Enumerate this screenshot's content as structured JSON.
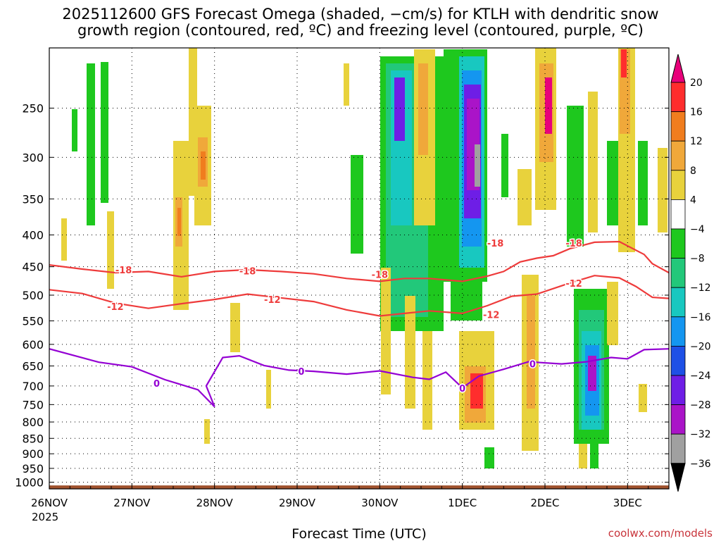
{
  "header": {
    "title_line1": "2025112600 GFS Forecast Omega (shaded, −cm/s) for KTLH with dendritic snow",
    "title_line2": "growth region (contoured, red, ºC) and freezing level (contoured, purple, ºC)"
  },
  "footer": {
    "credit": "coolwx.com/models"
  },
  "colors": {
    "dsg": "#ee3b3b",
    "frz": "#9400d3",
    "ground": "#a0522d"
  },
  "chart_data": {
    "type": "heatmap",
    "title": "2025112600 GFS Forecast Omega (shaded, −cm/s) for KTLH with dendritic snow growth region (contoured, red, ºC) and freezing level (contoured, purple, ºC)",
    "xlabel": "Forecast Time (UTC)",
    "ylabel": "",
    "year_label": "2025",
    "x_ticks": [
      "26NOV",
      "27NOV",
      "28NOV",
      "29NOV",
      "30NOV",
      "1DEC",
      "2DEC",
      "3DEC"
    ],
    "x_range_days": [
      0,
      7.5
    ],
    "y_ticks": [
      250,
      300,
      350,
      400,
      450,
      500,
      550,
      600,
      650,
      700,
      750,
      800,
      850,
      900,
      950,
      1000
    ],
    "y_range": [
      1025,
      200
    ],
    "colorbar": {
      "labels": [
        "20",
        "16",
        "12",
        "8",
        "4",
        "−4",
        "−8",
        "−12",
        "−16",
        "−20",
        "−24",
        "−28",
        "−32",
        "−36"
      ],
      "colors": [
        "#ff2d2d",
        "#f07d1e",
        "#f0a83a",
        "#e8d23c",
        "#ffffff",
        "#1ec81e",
        "#22c87a",
        "#18c8c0",
        "#1496f0",
        "#1e50e6",
        "#6e1ee6",
        "#aa14c8",
        "#a0a0a0"
      ],
      "over_color": "#e8007a",
      "under_color": "#000000"
    },
    "series": [
      {
        "name": "-18",
        "color": "#ee3b3b",
        "label_positions": [
          [
            0.9,
            455
          ],
          [
            2.4,
            457
          ],
          [
            4.0,
            463
          ],
          [
            5.4,
            412
          ],
          [
            6.35,
            412
          ]
        ],
        "points": [
          [
            0,
            447
          ],
          [
            0.4,
            454
          ],
          [
            0.8,
            460
          ],
          [
            1.2,
            458
          ],
          [
            1.6,
            467
          ],
          [
            2.0,
            458
          ],
          [
            2.4,
            455
          ],
          [
            2.8,
            458
          ],
          [
            3.2,
            462
          ],
          [
            3.6,
            470
          ],
          [
            4.0,
            475
          ],
          [
            4.3,
            470
          ],
          [
            4.6,
            470
          ],
          [
            5.0,
            475
          ],
          [
            5.3,
            466
          ],
          [
            5.5,
            458
          ],
          [
            5.7,
            442
          ],
          [
            5.9,
            436
          ],
          [
            6.1,
            432
          ],
          [
            6.3,
            421
          ],
          [
            6.6,
            411
          ],
          [
            6.9,
            410
          ],
          [
            7.2,
            430
          ],
          [
            7.3,
            445
          ],
          [
            7.5,
            460
          ]
        ]
      },
      {
        "name": "-12",
        "color": "#ee3b3b",
        "label_positions": [
          [
            0.8,
            521
          ],
          [
            2.7,
            508
          ],
          [
            5.35,
            537
          ],
          [
            6.35,
            478
          ]
        ],
        "points": [
          [
            0,
            490
          ],
          [
            0.4,
            497
          ],
          [
            0.8,
            515
          ],
          [
            1.2,
            525
          ],
          [
            1.6,
            516
          ],
          [
            2.0,
            508
          ],
          [
            2.4,
            498
          ],
          [
            2.8,
            505
          ],
          [
            3.2,
            512
          ],
          [
            3.6,
            528
          ],
          [
            4.0,
            540
          ],
          [
            4.3,
            535
          ],
          [
            4.6,
            530
          ],
          [
            5.0,
            535
          ],
          [
            5.3,
            520
          ],
          [
            5.6,
            502
          ],
          [
            5.9,
            498
          ],
          [
            6.3,
            478
          ],
          [
            6.6,
            465
          ],
          [
            6.9,
            469
          ],
          [
            7.1,
            484
          ],
          [
            7.3,
            504
          ],
          [
            7.5,
            506
          ]
        ]
      },
      {
        "name": "0",
        "color": "#9400d3",
        "label_positions": [
          [
            1.3,
            693
          ],
          [
            3.05,
            663
          ],
          [
            5.0,
            706
          ],
          [
            5.85,
            645
          ]
        ],
        "points": [
          [
            0,
            610
          ],
          [
            0.6,
            641
          ],
          [
            1.0,
            652
          ],
          [
            1.4,
            684
          ],
          [
            1.8,
            710
          ],
          [
            2.0,
            756
          ],
          [
            1.9,
            700
          ],
          [
            2.1,
            630
          ],
          [
            2.3,
            626
          ],
          [
            2.6,
            649
          ],
          [
            2.9,
            660
          ],
          [
            3.2,
            663
          ],
          [
            3.6,
            670
          ],
          [
            4.0,
            662
          ],
          [
            4.4,
            678
          ],
          [
            4.6,
            683
          ],
          [
            4.8,
            665
          ],
          [
            5.0,
            705
          ],
          [
            5.2,
            675
          ],
          [
            5.5,
            658
          ],
          [
            5.8,
            640
          ],
          [
            6.2,
            645
          ],
          [
            6.5,
            640
          ],
          [
            6.8,
            630
          ],
          [
            7.0,
            633
          ],
          [
            7.2,
            612
          ],
          [
            7.5,
            610
          ]
        ]
      }
    ]
  }
}
